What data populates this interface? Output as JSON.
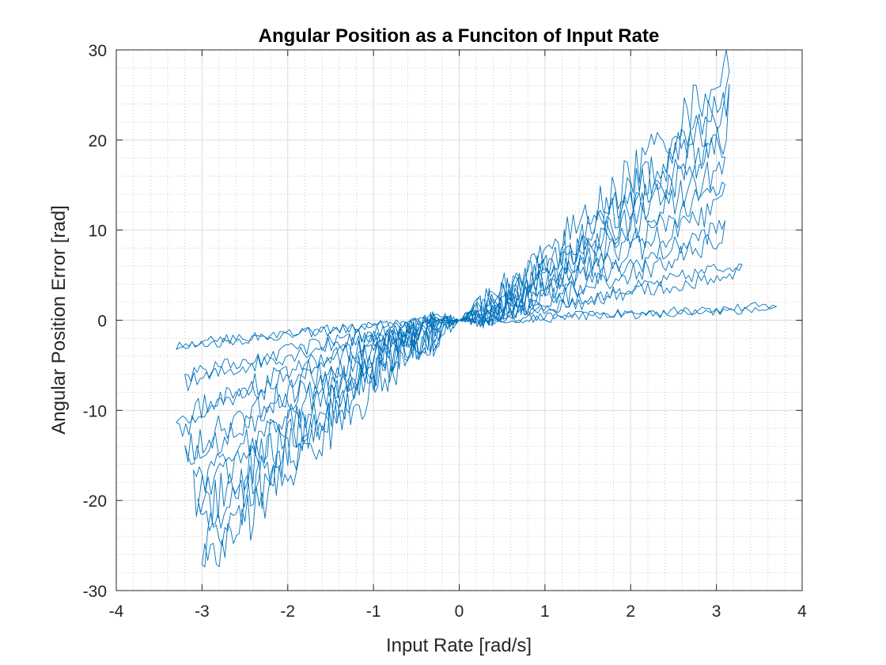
{
  "chart_data": {
    "type": "line",
    "title": "Angular Position as a Funciton of Input Rate",
    "xlabel": "Input Rate [rad/s]",
    "ylabel": "Angular Position Error [rad]",
    "xlim": [
      -4,
      4
    ],
    "ylim": [
      -30,
      30
    ],
    "xticks": [
      -4,
      -3,
      -2,
      -1,
      0,
      1,
      2,
      3,
      4
    ],
    "yticks": [
      -30,
      -20,
      -10,
      0,
      10,
      20,
      30
    ],
    "xtick_labels": [
      "-4",
      "-3",
      "-2",
      "-1",
      "0",
      "1",
      "2",
      "3",
      "4"
    ],
    "ytick_labels": [
      "-30",
      "-20",
      "-10",
      "0",
      "10",
      "20",
      "30"
    ],
    "grid": true,
    "minor_grid": true,
    "line_color": "#0072BD",
    "series": [
      {
        "values": [
          {
            "sweep": 1,
            "x_min": -3.3,
            "y_at_x_min": -3.0,
            "x_max": 3.7,
            "y_at_x_max": 1.6
          },
          {
            "sweep": 2,
            "x_min": -3.2,
            "y_at_x_min": -7.0,
            "x_max": 3.3,
            "y_at_x_max": 6.4
          },
          {
            "sweep": 3,
            "x_min": -3.3,
            "y_at_x_min": -12.0,
            "x_max": 3.1,
            "y_at_x_max": 10.5
          },
          {
            "sweep": 4,
            "x_min": -3.2,
            "y_at_x_min": -16.0,
            "x_max": 3.1,
            "y_at_x_max": 15.0
          },
          {
            "sweep": 5,
            "x_min": -3.1,
            "y_at_x_min": -20.0,
            "x_max": 3.1,
            "y_at_x_max": 20.0
          },
          {
            "sweep": 6,
            "x_min": -3.05,
            "y_at_x_min": -24.0,
            "x_max": 3.15,
            "y_at_x_max": 24.5
          },
          {
            "sweep": 7,
            "x_min": -3.0,
            "y_at_x_min": -28.0,
            "x_max": 3.15,
            "y_at_x_max": 28.5
          }
        ]
      }
    ]
  }
}
